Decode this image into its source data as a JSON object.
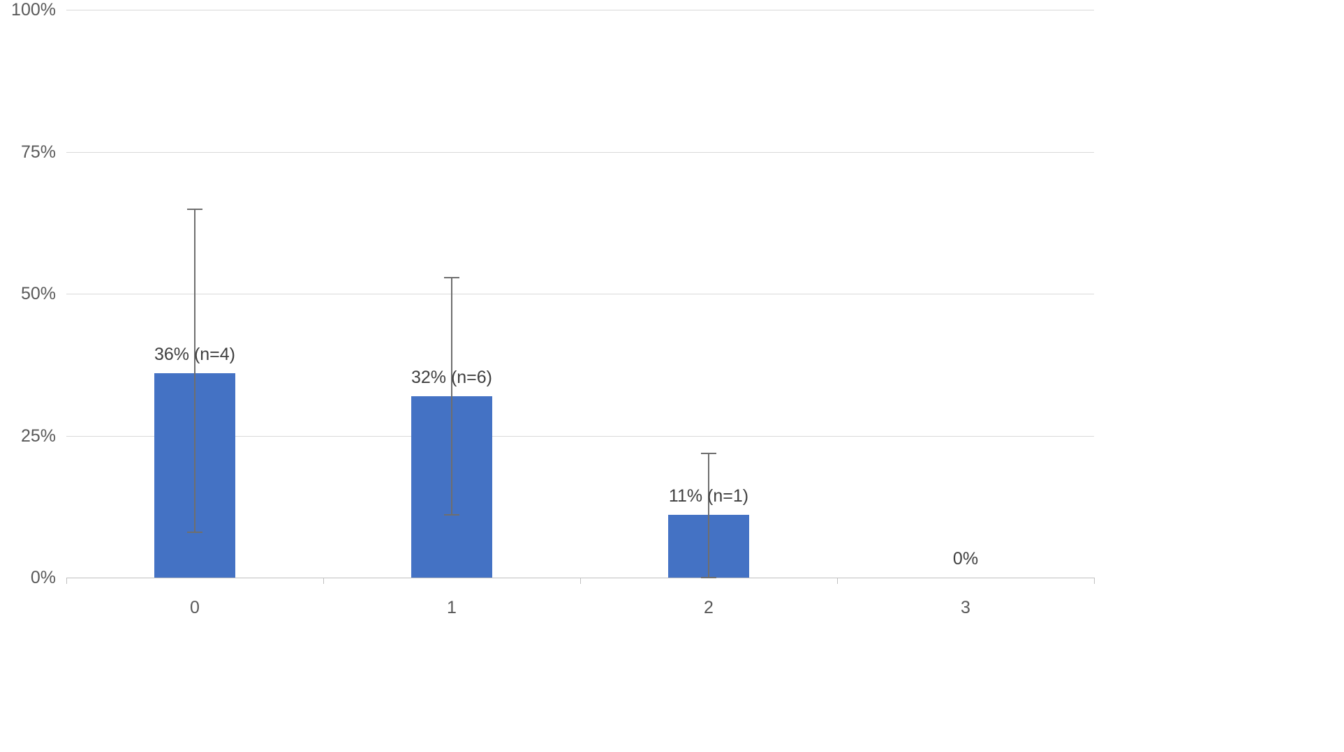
{
  "chart_data": {
    "type": "bar",
    "title": "",
    "xlabel": "",
    "ylabel": "",
    "categories": [
      "0",
      "1",
      "2",
      "3"
    ],
    "values": [
      36,
      32,
      11,
      0
    ],
    "bar_labels": [
      "36% (n=4)",
      "32% (n=6)",
      "11% (n=1)",
      "0%"
    ],
    "error_bars": [
      {
        "low": 8,
        "high": 65
      },
      {
        "low": 11,
        "high": 53
      },
      {
        "low": 0,
        "high": 22
      },
      null
    ],
    "ylim": [
      0,
      100
    ],
    "ytick_values": [
      0,
      25,
      50,
      75,
      100
    ],
    "ytick_labels": [
      "0%",
      "25%",
      "50%",
      "75%",
      "100%"
    ],
    "grid": true,
    "legend": "none",
    "colors": {
      "bar": "#4472C4",
      "error_bar": "#6e6e6e",
      "gridline": "#d9d9d9",
      "axis_line": "#bfbfbf",
      "axis_text": "#595959",
      "label_text": "#3f3f3f",
      "background": "#ffffff"
    }
  }
}
